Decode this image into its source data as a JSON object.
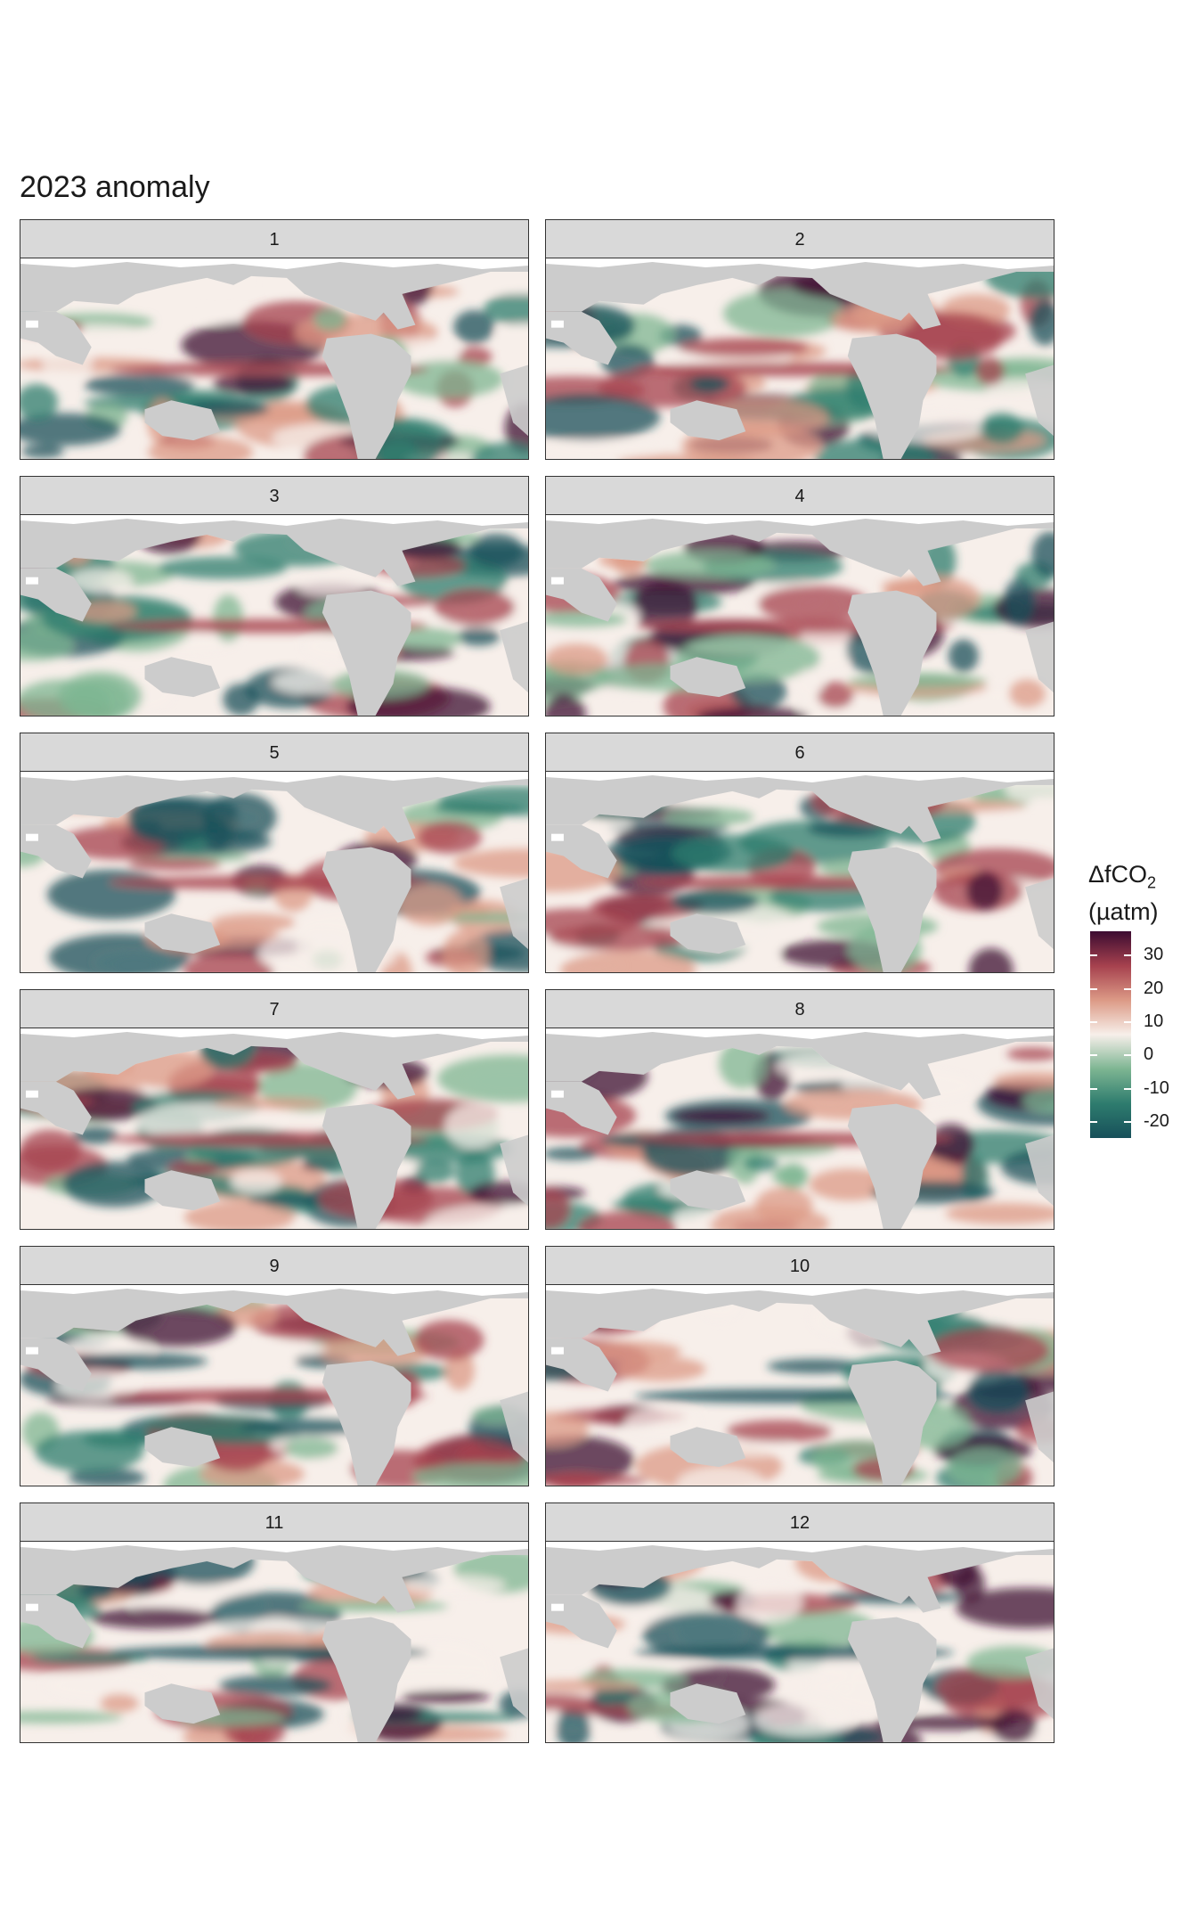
{
  "title": "2023 anomaly",
  "legend": {
    "title_main": "ΔfCO",
    "title_sub": "2",
    "unit": "(µatm)",
    "ticks": [
      "30",
      "20",
      "10",
      "0",
      "-10",
      "-20"
    ],
    "tick_values": [
      30,
      20,
      10,
      0,
      -10,
      -20
    ],
    "range": [
      -25,
      37
    ],
    "colors": [
      "#17505a",
      "#2e7c6e",
      "#7db592",
      "#f7efea",
      "#dc9a86",
      "#a6414e",
      "#3c0c31"
    ]
  },
  "panels": [
    {
      "label": "1"
    },
    {
      "label": "2"
    },
    {
      "label": "3"
    },
    {
      "label": "4"
    },
    {
      "label": "5"
    },
    {
      "label": "6"
    },
    {
      "label": "7"
    },
    {
      "label": "8"
    },
    {
      "label": "9"
    },
    {
      "label": "10"
    },
    {
      "label": "11"
    },
    {
      "label": "12"
    }
  ],
  "colors": {
    "land": "#cccccc",
    "sea_ice": "#ffffff",
    "strip": "#d9d9d9"
  }
}
